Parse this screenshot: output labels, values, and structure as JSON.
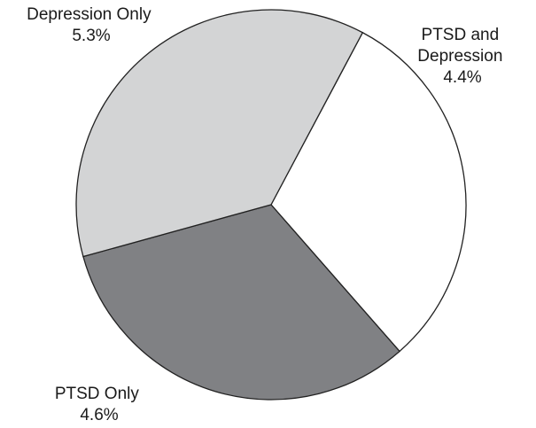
{
  "chart_data": {
    "type": "pie",
    "title": "",
    "slices": [
      {
        "label_lines": [
          "PTSD and",
          "Depression"
        ],
        "value": 4.4,
        "value_label": "4.4%",
        "color": "#ffffff"
      },
      {
        "label_lines": [
          "PTSD Only"
        ],
        "value": 4.6,
        "value_label": "4.6%",
        "color": "#808184"
      },
      {
        "label_lines": [
          "Depression Only"
        ],
        "value": 5.3,
        "value_label": "5.3%",
        "color": "#d3d4d5"
      }
    ],
    "start_angle_deg": -62,
    "direction": "clockwise",
    "legend": "none"
  }
}
